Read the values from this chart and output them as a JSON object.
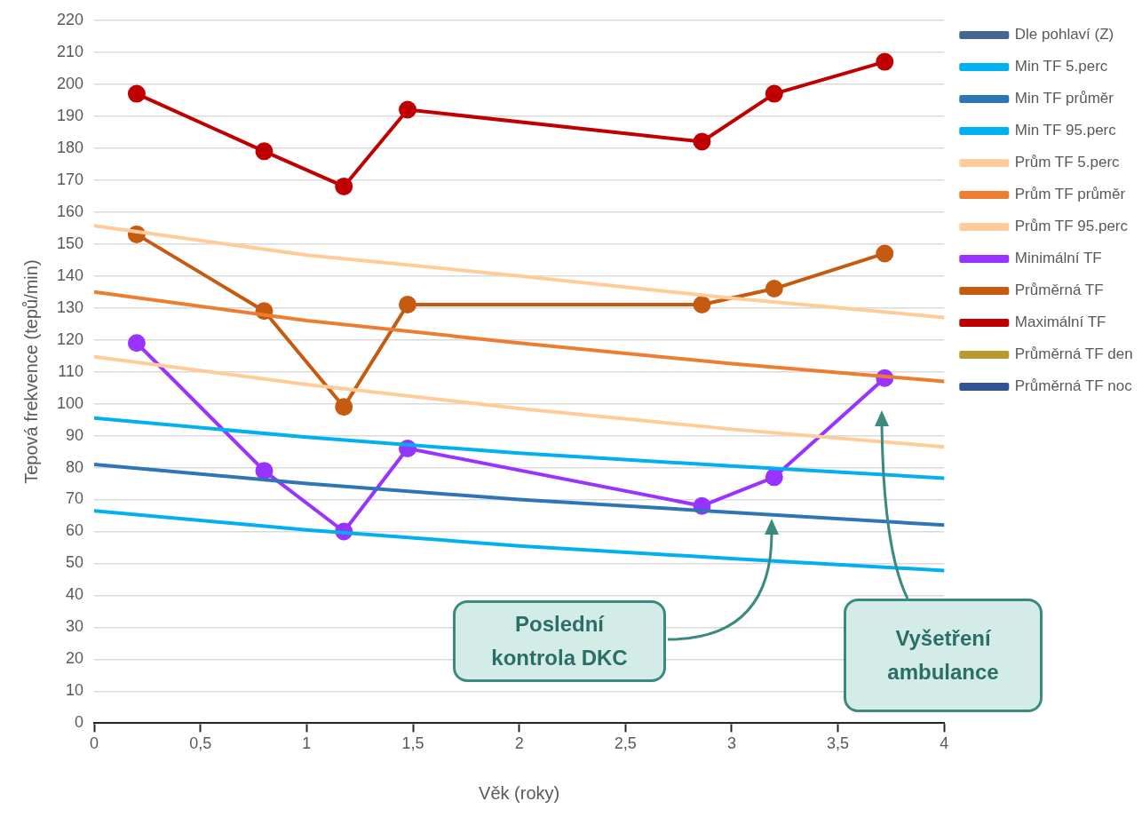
{
  "chart_data": {
    "type": "line",
    "xlabel": "Věk (roky)",
    "ylabel": "Tepová frekvence (tepů/min)",
    "xlim": [
      0,
      4
    ],
    "xticks": [
      0,
      {
        "value": 0.5,
        "label": "0,5"
      },
      1,
      {
        "value": 1.5,
        "label": "1,5"
      },
      2,
      {
        "value": 2.5,
        "label": "2,5"
      },
      3,
      {
        "value": 3.5,
        "label": "3,5"
      },
      4
    ],
    "ylim": [
      0,
      220
    ],
    "yticks": [
      0,
      10,
      20,
      30,
      40,
      50,
      60,
      70,
      80,
      90,
      100,
      110,
      120,
      130,
      140,
      150,
      160,
      170,
      180,
      190,
      200,
      210,
      220
    ],
    "grid": "y",
    "legend": "right",
    "marker": "circle",
    "series": [
      {
        "name": "Dle pohlaví (Z)",
        "color": "#44678f",
        "marker": "none"
      },
      {
        "name": "Min TF 5.perc",
        "color": "#00b0f0",
        "marker": "none",
        "x": [
          0,
          1,
          2,
          3,
          4
        ],
        "values": [
          66.5,
          60.5,
          55.5,
          51.5,
          47.8
        ]
      },
      {
        "name": "Min TF průměr",
        "color": "#2e75b6",
        "marker": "none",
        "x": [
          0,
          1,
          2,
          3,
          4
        ],
        "values": [
          81,
          75,
          70,
          66,
          62
        ]
      },
      {
        "name": "Min TF 95.perc",
        "color": "#00b0f0",
        "marker": "none",
        "x": [
          0,
          1,
          2,
          3,
          4
        ],
        "values": [
          95.5,
          89.5,
          84.5,
          80.5,
          76.7
        ]
      },
      {
        "name": "Prům TF 5.perc",
        "color": "#ffcc99",
        "marker": "none",
        "x": [
          0,
          1,
          2,
          3,
          4
        ],
        "values": [
          114.7,
          106,
          98.5,
          92,
          86.5
        ]
      },
      {
        "name": "Prům TF průměr",
        "color": "#ed7d31",
        "marker": "none",
        "x": [
          0,
          1,
          2,
          3,
          4
        ],
        "values": [
          135,
          126,
          119,
          112.5,
          107
        ]
      },
      {
        "name": "Prům TF 95.perc",
        "color": "#ffcc99",
        "marker": "none",
        "x": [
          0,
          1,
          2,
          3,
          4
        ],
        "values": [
          155.7,
          146.5,
          140,
          133,
          127
        ]
      },
      {
        "name": "Minimální TF",
        "color": "#9933ff",
        "x": [
          0.2,
          0.8,
          1.175,
          1.475,
          2.86,
          3.2,
          3.72
        ],
        "values": [
          119,
          79,
          60,
          86,
          68,
          77,
          108
        ]
      },
      {
        "name": "Průměrná TF",
        "color": "#c55a11",
        "x": [
          0.2,
          0.8,
          1.175,
          1.475,
          2.86,
          3.2,
          3.72
        ],
        "values": [
          153,
          129,
          99,
          131,
          131,
          136,
          147
        ]
      },
      {
        "name": "Maximální TF",
        "color": "#c00000",
        "x": [
          0.2,
          0.8,
          1.175,
          1.475,
          2.86,
          3.2,
          3.72
        ],
        "values": [
          197,
          179,
          168,
          192,
          182,
          197,
          207
        ]
      },
      {
        "name": "Průměrná TF den",
        "color": "#b89a30"
      },
      {
        "name": "Průměrná TF noc",
        "color": "#2f5597"
      }
    ],
    "annotations": [
      "Poslední kontrola DKC",
      "Vyšetření ambulance"
    ]
  }
}
